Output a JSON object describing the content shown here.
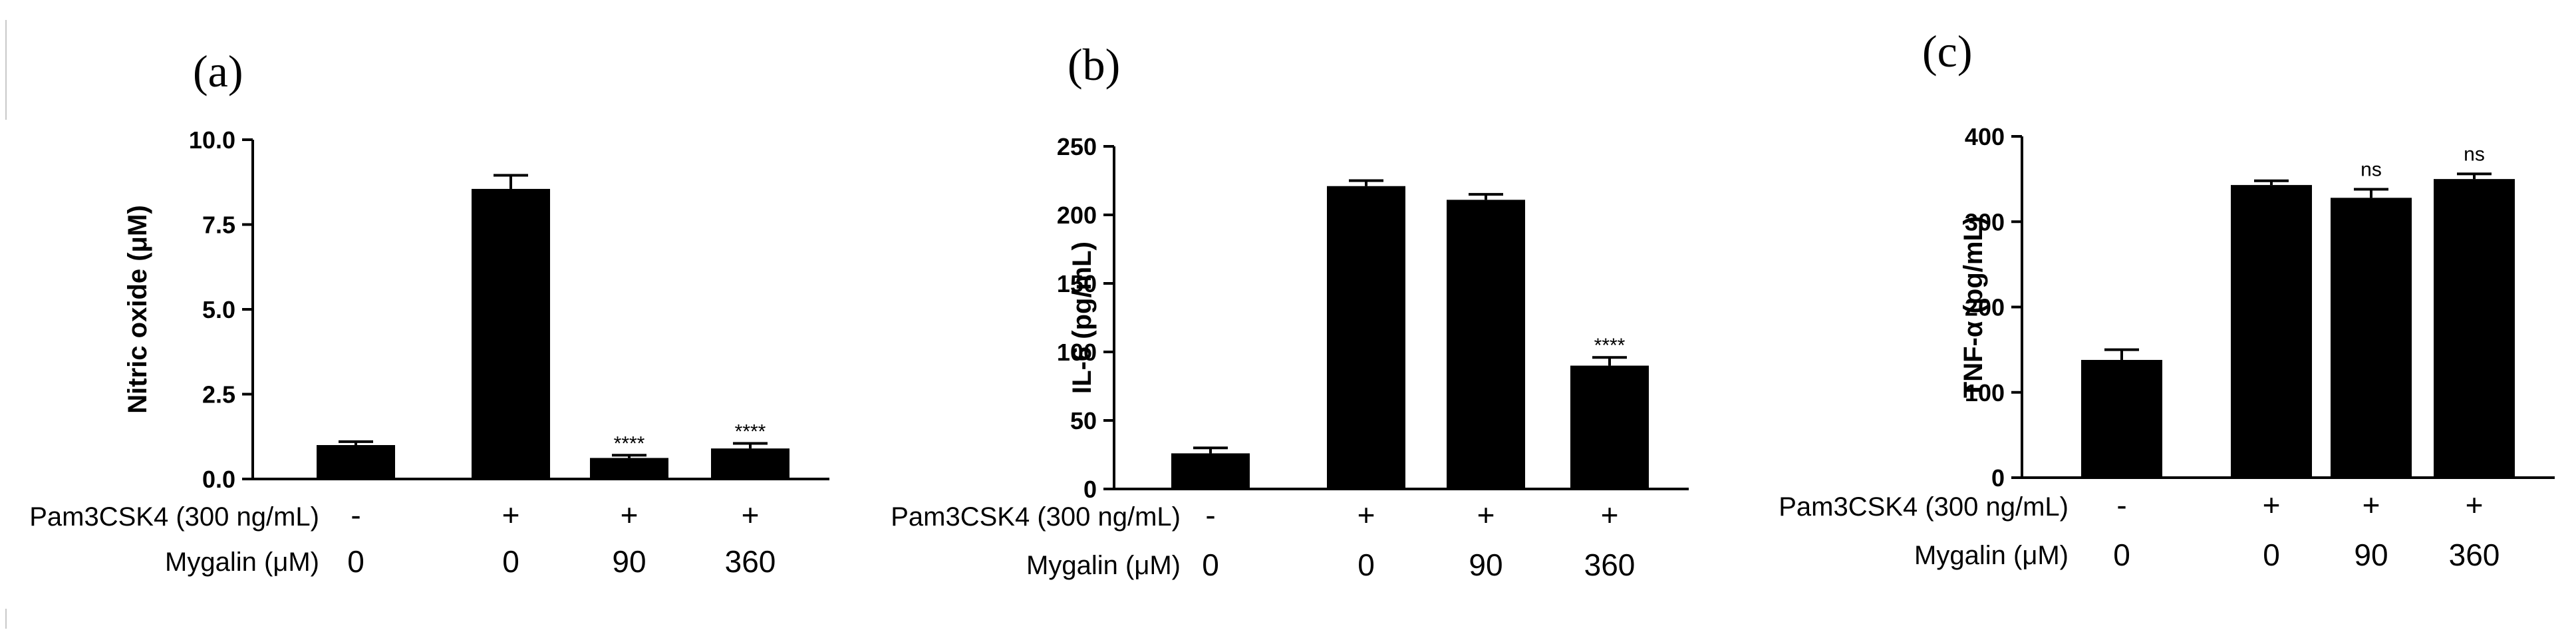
{
  "colors": {
    "bar": "#000000",
    "axis": "#000000",
    "background": "#ffffff"
  },
  "panels": [
    {
      "id": "a",
      "label": "(a)",
      "row1_label": "Pam3CSK4 (300 ng/mL)",
      "row2_label": "Mygalin (μM)",
      "row1_values": [
        "-",
        "+",
        "+",
        "+"
      ],
      "row2_values": [
        "0",
        "0",
        "90",
        "360"
      ]
    },
    {
      "id": "b",
      "label": "(b)",
      "row1_label": "Pam3CSK4 (300 ng/mL)",
      "row2_label": "Mygalin (μM)",
      "row1_values": [
        "-",
        "+",
        "+",
        "+"
      ],
      "row2_values": [
        "0",
        "0",
        "90",
        "360"
      ]
    },
    {
      "id": "c",
      "label": "(c)",
      "row1_label": "Pam3CSK4 (300 ng/mL)",
      "row2_label": "Mygalin (μM)",
      "row1_values": [
        "-",
        "+",
        "+",
        "+"
      ],
      "row2_values": [
        "0",
        "0",
        "90",
        "360"
      ]
    }
  ],
  "chart_data": [
    {
      "type": "bar",
      "title": "",
      "ylabel": "Nitric oxide (μM)",
      "xlabel": "",
      "ylim": [
        0,
        10
      ],
      "yticks": [
        0.0,
        2.5,
        5.0,
        7.5,
        10.0
      ],
      "ytick_labels": [
        "0.0",
        "2.5",
        "5.0",
        "7.5",
        "10.0"
      ],
      "categories": [
        "- / 0",
        "+ / 0",
        "+ / 90",
        "+ / 360"
      ],
      "values": [
        1.0,
        8.55,
        0.62,
        0.9
      ],
      "errors": [
        0.1,
        0.4,
        0.08,
        0.15
      ],
      "significance": [
        "",
        "",
        "****",
        "****"
      ]
    },
    {
      "type": "bar",
      "title": "",
      "ylabel": "IL-6 (pg/mL)",
      "xlabel": "",
      "ylim": [
        0,
        250
      ],
      "yticks": [
        0,
        50,
        100,
        150,
        200,
        250
      ],
      "ytick_labels": [
        "0",
        "50",
        "100",
        "150",
        "200",
        "250"
      ],
      "categories": [
        "- / 0",
        "+ / 0",
        "+ / 90",
        "+ / 360"
      ],
      "values": [
        26,
        221,
        211,
        90
      ],
      "errors": [
        4,
        4,
        4,
        6
      ],
      "significance": [
        "",
        "",
        "",
        "****"
      ]
    },
    {
      "type": "bar",
      "title": "",
      "ylabel": "TNF-α (pg/mL)",
      "xlabel": "",
      "ylim": [
        0,
        400
      ],
      "yticks": [
        0,
        100,
        200,
        300,
        400
      ],
      "ytick_labels": [
        "0",
        "100",
        "200",
        "300",
        "400"
      ],
      "categories": [
        "- / 0",
        "+ / 0",
        "+ / 90",
        "+ / 360"
      ],
      "values": [
        138,
        343,
        328,
        350
      ],
      "errors": [
        12,
        5,
        10,
        6
      ],
      "significance": [
        "",
        "",
        "ns",
        "ns"
      ]
    }
  ]
}
